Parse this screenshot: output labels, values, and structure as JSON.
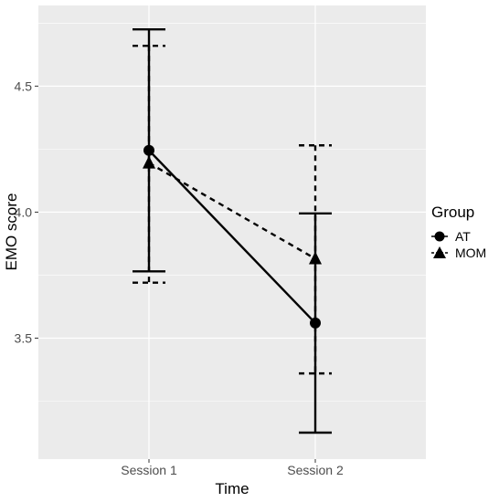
{
  "chart_data": {
    "type": "line",
    "xlabel": "Time",
    "ylabel": "EMO score",
    "categories": [
      "Session 1",
      "Session 2"
    ],
    "yticks": [
      3.5,
      4.0,
      4.5
    ],
    "ytick_labels": [
      "3.5",
      "4.0",
      "4.5"
    ],
    "ylim": [
      3.02,
      4.82
    ],
    "grid": true,
    "background": "#ebebeb",
    "legend": {
      "title": "Group",
      "position": "right"
    },
    "series": [
      {
        "name": "AT",
        "marker": "circle",
        "linestyle": "solid",
        "values": [
          4.245,
          3.56
        ],
        "error_low": [
          3.765,
          3.125
        ],
        "error_high": [
          4.725,
          3.995
        ]
      },
      {
        "name": "MOM",
        "marker": "triangle",
        "linestyle": "dashed",
        "values": [
          4.195,
          3.815
        ],
        "error_low": [
          3.72,
          3.36
        ],
        "error_high": [
          4.66,
          4.265
        ]
      }
    ]
  }
}
